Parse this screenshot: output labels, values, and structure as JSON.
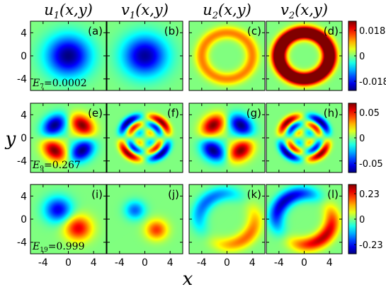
{
  "figure": {
    "column_titles": [
      {
        "main": "u",
        "sub": "1",
        "args": "(x,y)"
      },
      {
        "main": "v",
        "sub": "1",
        "args": "(x,y)"
      },
      {
        "main": "u",
        "sub": "2",
        "args": "(x,y)"
      },
      {
        "main": "v",
        "sub": "2",
        "args": "(x,y)"
      }
    ],
    "xlabel": "x",
    "ylabel": "y"
  },
  "chart_data": {
    "type": "heatmap",
    "x_ticks": [
      -4,
      0,
      4
    ],
    "y_ticks": [
      4,
      0,
      -4
    ],
    "xlim": [
      -6,
      6
    ],
    "ylim": [
      -6,
      6
    ],
    "colormap": "jet",
    "rows": [
      {
        "energy": {
          "label": "E",
          "sub": "7",
          "value": "=0.0002"
        },
        "colorbar": {
          "ticks": [
            "0.018",
            "0",
            "-0.018"
          ],
          "range": [
            -0.018,
            0.018
          ]
        },
        "panels": [
          {
            "label": "(a)",
            "pattern": "gaussian",
            "sign": -1,
            "amp": 1.0
          },
          {
            "label": "(b)",
            "pattern": "gaussian",
            "sign": -1,
            "amp": 0.95
          },
          {
            "label": "(c)",
            "pattern": "ring",
            "sign": 1,
            "amp": 0.5
          },
          {
            "label": "(d)",
            "pattern": "ring",
            "sign": 1,
            "amp": 1.7
          }
        ]
      },
      {
        "energy": {
          "label": "E",
          "sub": "9",
          "value": "=0.267"
        },
        "colorbar": {
          "ticks": [
            "0.05",
            "0",
            "-0.05"
          ],
          "range": [
            -0.05,
            0.05
          ]
        },
        "panels": [
          {
            "label": "(e)",
            "pattern": "quad",
            "sign": 1,
            "amp": 1.0
          },
          {
            "label": "(f)",
            "pattern": "quad_rings",
            "sign": 1,
            "amp": 1.0
          },
          {
            "label": "(g)",
            "pattern": "quad",
            "sign": -1,
            "amp": 1.0
          },
          {
            "label": "(h)",
            "pattern": "quad_rings",
            "sign": -1,
            "amp": 1.0
          }
        ]
      },
      {
        "energy": {
          "label": "E",
          "sub": "19",
          "value": "=0.999"
        },
        "colorbar": {
          "ticks": [
            "0.23",
            "0",
            "-0.23"
          ],
          "range": [
            -0.23,
            0.23
          ]
        },
        "panels": [
          {
            "label": "(i)",
            "pattern": "dipole",
            "sign": 1,
            "amp": 0.8
          },
          {
            "label": "(j)",
            "pattern": "dipole_small",
            "sign": 1,
            "amp": 0.65
          },
          {
            "label": "(k)",
            "pattern": "arcs",
            "sign": 1,
            "amp": 0.55
          },
          {
            "label": "(l)",
            "pattern": "arcs",
            "sign": 1,
            "amp": 0.9
          }
        ]
      }
    ]
  }
}
